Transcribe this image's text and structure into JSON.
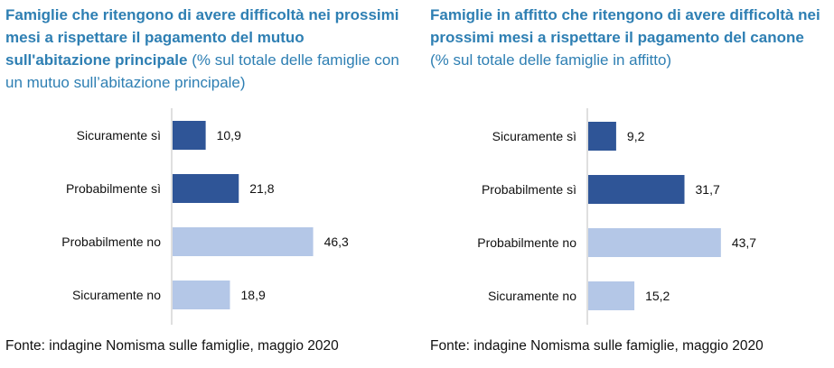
{
  "panels": [
    {
      "title_bold": "Famiglie che ritengono di avere difficoltà nei prossimi mesi a rispettare il pagamento del mutuo sull'abitazione principale",
      "title_rest": " (% sul totale delle famiglie con un mutuo sull’abitazione principale)",
      "source": "Fonte: indagine Nomisma sulle famiglie, maggio 2020"
    },
    {
      "title_bold": "Famiglie in affitto che ritengono di avere difficoltà nei prossimi mesi a rispettare il pagamento del canone",
      "title_rest": " (% sul totale delle famiglie in affitto)",
      "source": "Fonte: indagine Nomisma sulle famiglie, maggio 2020"
    }
  ],
  "colors": {
    "dark_bar": "#2f5597",
    "light_bar": "#b4c7e7",
    "axis": "#bfbfbf",
    "title": "#2e7fb3"
  },
  "chart_data": [
    {
      "type": "bar",
      "orientation": "horizontal",
      "categories": [
        "Sicuramente sì",
        "Probabilmente sì",
        "Probabilmente no",
        "Sicuramente no"
      ],
      "values": [
        10.9,
        21.8,
        46.3,
        18.9
      ],
      "value_labels": [
        "10,9",
        "21,8",
        "46,3",
        "18,9"
      ],
      "bar_colors": [
        "#2f5597",
        "#2f5597",
        "#b4c7e7",
        "#b4c7e7"
      ],
      "title": "Famiglie che ritengono di avere difficoltà nei prossimi mesi a rispettare il pagamento del mutuo sull'abitazione principale",
      "xlim": [
        0,
        50
      ],
      "grid": false
    },
    {
      "type": "bar",
      "orientation": "horizontal",
      "categories": [
        "Sicuramente sì",
        "Probabilmente sì",
        "Probabilmente no",
        "Sicuramente no"
      ],
      "values": [
        9.2,
        31.7,
        43.7,
        15.2
      ],
      "value_labels": [
        "9,2",
        "31,7",
        "43,7",
        "15,2"
      ],
      "bar_colors": [
        "#2f5597",
        "#2f5597",
        "#b4c7e7",
        "#b4c7e7"
      ],
      "title": "Famiglie in affitto che ritengono di avere difficoltà nei prossimi mesi a rispettare il pagamento del canone",
      "xlim": [
        0,
        50
      ],
      "grid": false
    }
  ]
}
